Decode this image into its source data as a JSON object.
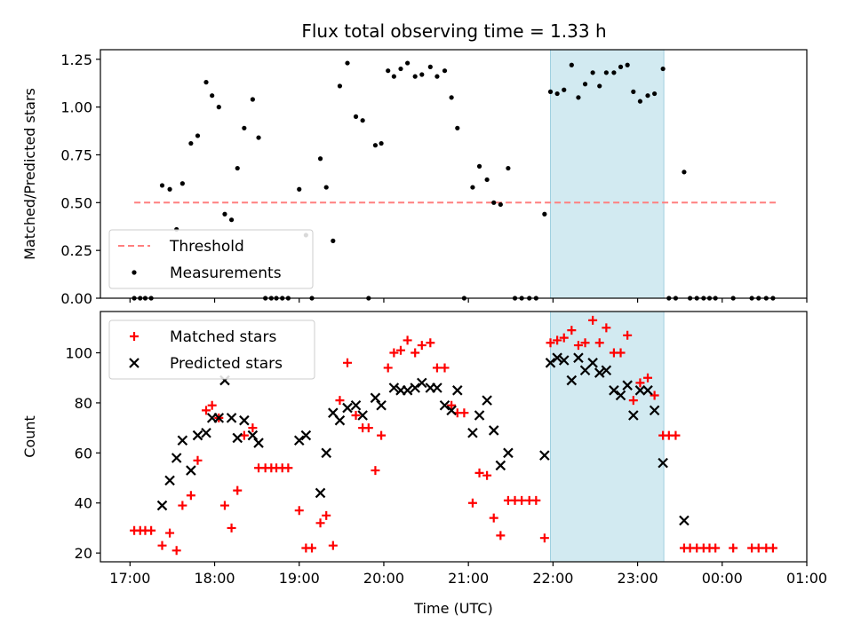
{
  "title": "Flux total observing time = 1.33 h",
  "colors": {
    "threshold": "#ff7f7f",
    "measurement": "#000000",
    "matched": "#ff0000",
    "predicted": "#000000",
    "highlight": "#add8e6"
  },
  "chart_data": [
    {
      "type": "scatter",
      "panel": "top",
      "title": "Flux total observing time = 1.33 h",
      "xlabel": "",
      "ylabel": "Matched/Predicted stars",
      "xlim": [
        16.65,
        25.0
      ],
      "ylim": [
        0.0,
        1.3
      ],
      "xticks": [
        17,
        18,
        19,
        20,
        21,
        22,
        23,
        24,
        25
      ],
      "xtick_labels": [
        "",
        "",
        "",
        "",
        "",
        "",
        "",
        "",
        ""
      ],
      "yticks": [
        0.0,
        0.25,
        0.5,
        0.75,
        1.0,
        1.25
      ],
      "ytick_labels": [
        "0.00",
        "0.25",
        "0.50",
        "0.75",
        "1.00",
        "1.25"
      ],
      "highlight_span": [
        21.97,
        23.31
      ],
      "threshold": {
        "y": 0.5,
        "x_range": [
          17.05,
          24.65
        ],
        "name": "Threshold"
      },
      "legend": {
        "position": "lower-left",
        "entries": [
          "Threshold",
          "Measurements"
        ]
      },
      "series": [
        {
          "name": "Measurements",
          "marker": "dot",
          "points": [
            [
              17.05,
              0.0
            ],
            [
              17.12,
              0.0
            ],
            [
              17.18,
              0.0
            ],
            [
              17.25,
              0.0
            ],
            [
              17.38,
              0.59
            ],
            [
              17.47,
              0.57
            ],
            [
              17.55,
              0.36
            ],
            [
              17.62,
              0.6
            ],
            [
              17.72,
              0.81
            ],
            [
              17.8,
              0.85
            ],
            [
              17.9,
              1.13
            ],
            [
              17.97,
              1.06
            ],
            [
              18.05,
              1.0
            ],
            [
              18.12,
              0.44
            ],
            [
              18.2,
              0.41
            ],
            [
              18.27,
              0.68
            ],
            [
              18.35,
              0.89
            ],
            [
              18.45,
              1.04
            ],
            [
              18.52,
              0.84
            ],
            [
              18.6,
              0.0
            ],
            [
              18.67,
              0.0
            ],
            [
              18.73,
              0.0
            ],
            [
              18.8,
              0.0
            ],
            [
              18.87,
              0.0
            ],
            [
              19.0,
              0.57
            ],
            [
              19.08,
              0.33
            ],
            [
              19.15,
              0.0
            ],
            [
              19.25,
              0.73
            ],
            [
              19.32,
              0.58
            ],
            [
              19.4,
              0.3
            ],
            [
              19.48,
              1.11
            ],
            [
              19.57,
              1.23
            ],
            [
              19.67,
              0.95
            ],
            [
              19.75,
              0.93
            ],
            [
              19.82,
              0.0
            ],
            [
              19.9,
              0.8
            ],
            [
              19.97,
              0.81
            ],
            [
              20.05,
              1.19
            ],
            [
              20.12,
              1.16
            ],
            [
              20.2,
              1.2
            ],
            [
              20.28,
              1.23
            ],
            [
              20.37,
              1.16
            ],
            [
              20.45,
              1.17
            ],
            [
              20.55,
              1.21
            ],
            [
              20.63,
              1.16
            ],
            [
              20.72,
              1.19
            ],
            [
              20.8,
              1.05
            ],
            [
              20.87,
              0.89
            ],
            [
              20.95,
              0.0
            ],
            [
              21.05,
              0.58
            ],
            [
              21.13,
              0.69
            ],
            [
              21.22,
              0.62
            ],
            [
              21.3,
              0.5
            ],
            [
              21.38,
              0.49
            ],
            [
              21.47,
              0.68
            ],
            [
              21.55,
              0.0
            ],
            [
              21.63,
              0.0
            ],
            [
              21.72,
              0.0
            ],
            [
              21.8,
              0.0
            ],
            [
              21.9,
              0.44
            ],
            [
              21.97,
              1.08
            ],
            [
              22.05,
              1.07
            ],
            [
              22.13,
              1.09
            ],
            [
              22.22,
              1.22
            ],
            [
              22.3,
              1.05
            ],
            [
              22.38,
              1.12
            ],
            [
              22.47,
              1.18
            ],
            [
              22.55,
              1.11
            ],
            [
              22.63,
              1.18
            ],
            [
              22.72,
              1.18
            ],
            [
              22.8,
              1.21
            ],
            [
              22.88,
              1.22
            ],
            [
              22.95,
              1.08
            ],
            [
              23.03,
              1.03
            ],
            [
              23.12,
              1.06
            ],
            [
              23.2,
              1.07
            ],
            [
              23.3,
              1.2
            ],
            [
              23.37,
              0.0
            ],
            [
              23.45,
              0.0
            ],
            [
              23.55,
              0.66
            ],
            [
              23.62,
              0.0
            ],
            [
              23.7,
              0.0
            ],
            [
              23.78,
              0.0
            ],
            [
              23.85,
              0.0
            ],
            [
              23.92,
              0.0
            ],
            [
              24.13,
              0.0
            ],
            [
              24.35,
              0.0
            ],
            [
              24.43,
              0.0
            ],
            [
              24.52,
              0.0
            ],
            [
              24.6,
              0.0
            ]
          ]
        }
      ]
    },
    {
      "type": "scatter",
      "panel": "bottom",
      "xlabel": "Time (UTC)",
      "ylabel": "Count",
      "xlim": [
        16.65,
        25.0
      ],
      "ylim": [
        16.5,
        116.5
      ],
      "xticks": [
        17,
        18,
        19,
        20,
        21,
        22,
        23,
        24,
        25
      ],
      "xtick_labels": [
        "17:00",
        "18:00",
        "19:00",
        "20:00",
        "21:00",
        "22:00",
        "23:00",
        "00:00",
        "01:00"
      ],
      "yticks": [
        20,
        40,
        60,
        80,
        100
      ],
      "ytick_labels": [
        "20",
        "40",
        "60",
        "80",
        "100"
      ],
      "highlight_span": [
        21.97,
        23.31
      ],
      "legend": {
        "position": "upper-left",
        "entries": [
          "Matched stars",
          "Predicted stars"
        ]
      },
      "series": [
        {
          "name": "Matched stars",
          "marker": "plus",
          "points": [
            [
              17.05,
              29
            ],
            [
              17.12,
              29
            ],
            [
              17.18,
              29
            ],
            [
              17.25,
              29
            ],
            [
              17.38,
              23
            ],
            [
              17.47,
              28
            ],
            [
              17.55,
              21
            ],
            [
              17.62,
              39
            ],
            [
              17.72,
              43
            ],
            [
              17.8,
              57
            ],
            [
              17.9,
              77
            ],
            [
              17.97,
              79
            ],
            [
              18.05,
              74
            ],
            [
              18.12,
              39
            ],
            [
              18.2,
              30
            ],
            [
              18.27,
              45
            ],
            [
              18.35,
              67
            ],
            [
              18.45,
              70
            ],
            [
              18.52,
              54
            ],
            [
              18.6,
              54
            ],
            [
              18.67,
              54
            ],
            [
              18.73,
              54
            ],
            [
              18.8,
              54
            ],
            [
              18.87,
              54
            ],
            [
              19.0,
              37
            ],
            [
              19.08,
              22
            ],
            [
              19.15,
              22
            ],
            [
              19.25,
              32
            ],
            [
              19.32,
              35
            ],
            [
              19.4,
              23
            ],
            [
              19.48,
              81
            ],
            [
              19.57,
              96
            ],
            [
              19.67,
              75
            ],
            [
              19.75,
              70
            ],
            [
              19.82,
              70
            ],
            [
              19.9,
              53
            ],
            [
              19.97,
              67
            ],
            [
              20.05,
              94
            ],
            [
              20.12,
              100
            ],
            [
              20.2,
              101
            ],
            [
              20.28,
              105
            ],
            [
              20.37,
              100
            ],
            [
              20.45,
              103
            ],
            [
              20.55,
              104
            ],
            [
              20.63,
              94
            ],
            [
              20.72,
              94
            ],
            [
              20.8,
              79
            ],
            [
              20.87,
              76
            ],
            [
              20.95,
              76
            ],
            [
              21.05,
              40
            ],
            [
              21.13,
              52
            ],
            [
              21.22,
              51
            ],
            [
              21.3,
              34
            ],
            [
              21.38,
              27
            ],
            [
              21.47,
              41
            ],
            [
              21.55,
              41
            ],
            [
              21.63,
              41
            ],
            [
              21.72,
              41
            ],
            [
              21.8,
              41
            ],
            [
              21.9,
              26
            ],
            [
              21.97,
              104
            ],
            [
              22.05,
              105
            ],
            [
              22.13,
              106
            ],
            [
              22.22,
              109
            ],
            [
              22.3,
              103
            ],
            [
              22.38,
              104
            ],
            [
              22.47,
              113
            ],
            [
              22.55,
              104
            ],
            [
              22.63,
              110
            ],
            [
              22.72,
              100
            ],
            [
              22.8,
              100
            ],
            [
              22.88,
              107
            ],
            [
              22.95,
              81
            ],
            [
              23.03,
              88
            ],
            [
              23.12,
              90
            ],
            [
              23.2,
              83
            ],
            [
              23.3,
              67
            ],
            [
              23.37,
              67
            ],
            [
              23.45,
              67
            ],
            [
              23.55,
              22
            ],
            [
              23.62,
              22
            ],
            [
              23.7,
              22
            ],
            [
              23.78,
              22
            ],
            [
              23.85,
              22
            ],
            [
              23.92,
              22
            ],
            [
              24.13,
              22
            ],
            [
              24.35,
              22
            ],
            [
              24.43,
              22
            ],
            [
              24.52,
              22
            ],
            [
              24.6,
              22
            ]
          ]
        },
        {
          "name": "Predicted stars",
          "marker": "x",
          "points": [
            [
              17.38,
              39
            ],
            [
              17.47,
              49
            ],
            [
              17.55,
              58
            ],
            [
              17.62,
              65
            ],
            [
              17.72,
              53
            ],
            [
              17.8,
              67
            ],
            [
              17.9,
              68
            ],
            [
              17.97,
              74
            ],
            [
              18.05,
              74
            ],
            [
              18.12,
              89
            ],
            [
              18.2,
              74
            ],
            [
              18.27,
              66
            ],
            [
              18.35,
              73
            ],
            [
              18.45,
              67
            ],
            [
              18.52,
              64
            ],
            [
              19.0,
              65
            ],
            [
              19.08,
              67
            ],
            [
              19.25,
              44
            ],
            [
              19.32,
              60
            ],
            [
              19.4,
              76
            ],
            [
              19.48,
              73
            ],
            [
              19.57,
              78
            ],
            [
              19.67,
              79
            ],
            [
              19.75,
              75
            ],
            [
              19.9,
              82
            ],
            [
              19.97,
              79
            ],
            [
              20.12,
              86
            ],
            [
              20.2,
              85
            ],
            [
              20.28,
              85
            ],
            [
              20.37,
              86
            ],
            [
              20.45,
              88
            ],
            [
              20.55,
              86
            ],
            [
              20.63,
              86
            ],
            [
              20.72,
              79
            ],
            [
              20.8,
              77
            ],
            [
              20.87,
              85
            ],
            [
              21.05,
              68
            ],
            [
              21.13,
              75
            ],
            [
              21.22,
              81
            ],
            [
              21.3,
              69
            ],
            [
              21.38,
              55
            ],
            [
              21.47,
              60
            ],
            [
              21.9,
              59
            ],
            [
              21.97,
              96
            ],
            [
              22.05,
              98
            ],
            [
              22.13,
              97
            ],
            [
              22.22,
              89
            ],
            [
              22.3,
              98
            ],
            [
              22.38,
              93
            ],
            [
              22.47,
              96
            ],
            [
              22.55,
              92
            ],
            [
              22.63,
              93
            ],
            [
              22.72,
              85
            ],
            [
              22.8,
              83
            ],
            [
              22.88,
              87
            ],
            [
              22.95,
              75
            ],
            [
              23.03,
              85
            ],
            [
              23.12,
              85
            ],
            [
              23.2,
              77
            ],
            [
              23.3,
              56
            ],
            [
              23.55,
              33
            ]
          ]
        }
      ]
    }
  ]
}
